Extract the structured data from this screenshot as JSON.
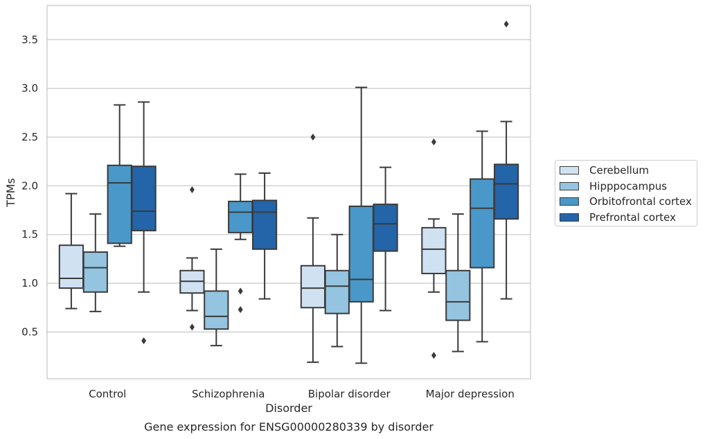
{
  "chart_data": {
    "type": "box",
    "title": "Gene expression for ENSG00000280339 by disorder",
    "xlabel": "Disorder",
    "ylabel": "TPMs",
    "ylim": [
      0.02,
      3.85
    ],
    "yticks": [
      0.5,
      1.0,
      1.5,
      2.0,
      2.5,
      3.0,
      3.5
    ],
    "ytick_labels": [
      "0.5",
      "1.0",
      "1.5",
      "2.0",
      "2.5",
      "3.0",
      "3.5"
    ],
    "grid": true,
    "legend_position": "right",
    "categories": [
      "Control",
      "Schizophrenia",
      "Bipolar disorder",
      "Major depression"
    ],
    "series": [
      {
        "name": "Cerebellum",
        "color": "#d0e1f2",
        "boxes": [
          {
            "whislo": 0.74,
            "q1": 0.95,
            "med": 1.05,
            "q3": 1.39,
            "whishi": 1.92,
            "fliers": []
          },
          {
            "whislo": 0.72,
            "q1": 0.9,
            "med": 1.02,
            "q3": 1.13,
            "whishi": 1.26,
            "fliers": [
              1.96,
              0.55
            ]
          },
          {
            "whislo": 0.19,
            "q1": 0.75,
            "med": 0.95,
            "q3": 1.18,
            "whishi": 1.67,
            "fliers": [
              2.5
            ]
          },
          {
            "whislo": 0.91,
            "q1": 1.1,
            "med": 1.35,
            "q3": 1.57,
            "whishi": 1.66,
            "fliers": [
              2.45,
              0.26
            ]
          }
        ]
      },
      {
        "name": "Hipppocampus",
        "color": "#94c4df",
        "boxes": [
          {
            "whislo": 0.71,
            "q1": 0.91,
            "med": 1.16,
            "q3": 1.32,
            "whishi": 1.71,
            "fliers": []
          },
          {
            "whislo": 0.36,
            "q1": 0.53,
            "med": 0.66,
            "q3": 0.92,
            "whishi": 1.35,
            "fliers": []
          },
          {
            "whislo": 0.35,
            "q1": 0.69,
            "med": 0.97,
            "q3": 1.13,
            "whishi": 1.5,
            "fliers": []
          },
          {
            "whislo": 0.3,
            "q1": 0.62,
            "med": 0.81,
            "q3": 1.13,
            "whishi": 1.71,
            "fliers": []
          }
        ]
      },
      {
        "name": "Orbitofrontal cortex",
        "color": "#4a98c9",
        "boxes": [
          {
            "whislo": 1.38,
            "q1": 1.41,
            "med": 2.03,
            "q3": 2.21,
            "whishi": 2.83,
            "fliers": []
          },
          {
            "whislo": 1.45,
            "q1": 1.52,
            "med": 1.73,
            "q3": 1.84,
            "whishi": 2.12,
            "fliers": [
              0.92,
              0.73
            ]
          },
          {
            "whislo": 0.18,
            "q1": 0.81,
            "med": 1.04,
            "q3": 1.79,
            "whishi": 3.01,
            "fliers": []
          },
          {
            "whislo": 0.4,
            "q1": 1.16,
            "med": 1.77,
            "q3": 2.07,
            "whishi": 2.56,
            "fliers": []
          }
        ]
      },
      {
        "name": "Prefrontal cortex",
        "color": "#2464a8",
        "boxes": [
          {
            "whislo": 0.91,
            "q1": 1.54,
            "med": 1.74,
            "q3": 2.2,
            "whishi": 2.86,
            "fliers": [
              0.41
            ]
          },
          {
            "whislo": 0.84,
            "q1": 1.35,
            "med": 1.73,
            "q3": 1.85,
            "whishi": 2.13,
            "fliers": []
          },
          {
            "whislo": 0.72,
            "q1": 1.33,
            "med": 1.61,
            "q3": 1.81,
            "whishi": 2.19,
            "fliers": []
          },
          {
            "whislo": 0.84,
            "q1": 1.66,
            "med": 2.02,
            "q3": 2.22,
            "whishi": 2.66,
            "fliers": [
              3.66
            ]
          }
        ]
      }
    ]
  }
}
